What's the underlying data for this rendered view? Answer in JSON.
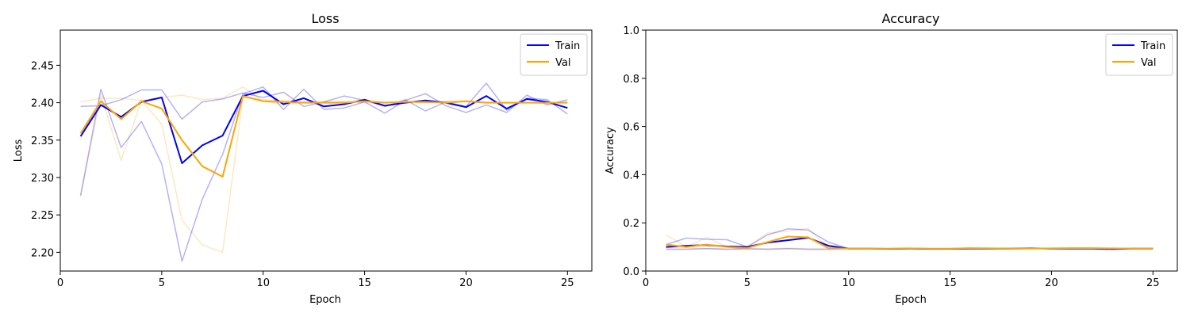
{
  "chart_data": [
    {
      "type": "line",
      "title": "Loss",
      "xlabel": "Epoch",
      "ylabel": "Loss",
      "xlim": [
        0,
        26.2
      ],
      "ylim": [
        2.175,
        2.497
      ],
      "xticks": [
        0,
        5,
        10,
        15,
        20,
        25
      ],
      "yticks": [
        2.2,
        2.25,
        2.3,
        2.35,
        2.4,
        2.45
      ],
      "ytick_labels": [
        "2.20",
        "2.25",
        "2.30",
        "2.35",
        "2.40",
        "2.45"
      ],
      "legend_position": "top-right",
      "grid": false,
      "x": [
        1,
        2,
        3,
        4,
        5,
        6,
        7,
        8,
        9,
        10,
        11,
        12,
        13,
        14,
        15,
        16,
        17,
        18,
        19,
        20,
        21,
        22,
        23,
        24,
        25
      ],
      "series": [
        {
          "name": "Train",
          "color": "#0000ff",
          "opacity": 1.0,
          "width": 2,
          "values": [
            2.355,
            2.397,
            2.381,
            2.401,
            2.407,
            2.319,
            2.343,
            2.356,
            2.409,
            2.416,
            2.398,
            2.406,
            2.395,
            2.398,
            2.404,
            2.396,
            2.4,
            2.403,
            2.4,
            2.394,
            2.409,
            2.392,
            2.405,
            2.401,
            2.393
          ]
        },
        {
          "name": "Val",
          "color": "#ffa500",
          "opacity": 1.0,
          "width": 2,
          "values": [
            2.359,
            2.402,
            2.378,
            2.402,
            2.392,
            2.35,
            2.315,
            2.301,
            2.409,
            2.402,
            2.401,
            2.4,
            2.4,
            2.4,
            2.402,
            2.4,
            2.401,
            2.401,
            2.4,
            2.402,
            2.4,
            2.4,
            2.4,
            2.4,
            2.4
          ]
        },
        {
          "color": "#0000ff",
          "opacity": 0.3,
          "width": 1.5,
          "values": [
            2.395,
            2.396,
            2.404,
            2.417,
            2.417,
            2.378,
            2.401,
            2.405,
            2.413,
            2.407,
            2.414,
            2.395,
            2.401,
            2.409,
            2.403,
            2.395,
            2.404,
            2.389,
            2.401,
            2.395,
            2.426,
            2.39,
            2.406,
            2.404,
            2.385
          ]
        },
        {
          "color": "#0000ff",
          "opacity": 0.3,
          "width": 1.5,
          "values": [
            2.276,
            2.418,
            2.34,
            2.375,
            2.318,
            2.188,
            2.271,
            2.331,
            2.412,
            2.421,
            2.391,
            2.418,
            2.391,
            2.393,
            2.401,
            2.386,
            2.403,
            2.412,
            2.396,
            2.387,
            2.397,
            2.387,
            2.41,
            2.397,
            2.404
          ]
        },
        {
          "color": "#ffa500",
          "opacity": 0.25,
          "width": 1.5,
          "values": [
            2.401,
            2.406,
            2.406,
            2.403,
            2.407,
            2.41,
            2.404,
            2.406,
            2.421,
            2.402,
            2.398,
            2.4,
            2.402,
            2.402,
            2.4,
            2.4,
            2.402,
            2.4,
            2.402,
            2.402,
            2.4,
            2.4,
            2.4,
            2.399,
            2.402
          ]
        },
        {
          "color": "#ffa500",
          "opacity": 0.25,
          "width": 1.5,
          "values": [
            2.275,
            2.41,
            2.323,
            2.403,
            2.371,
            2.243,
            2.21,
            2.2,
            2.407,
            2.404,
            2.403,
            2.402,
            2.4,
            2.4,
            2.402,
            2.401,
            2.4,
            2.4,
            2.401,
            2.402,
            2.401,
            2.4,
            2.4,
            2.4,
            2.4
          ]
        }
      ]
    },
    {
      "type": "line",
      "title": "Accuracy",
      "xlabel": "Epoch",
      "ylabel": "Accuracy",
      "xlim": [
        0,
        26.2
      ],
      "ylim": [
        0.0,
        1.0
      ],
      "xticks": [
        0,
        5,
        10,
        15,
        20,
        25
      ],
      "yticks": [
        0.0,
        0.2,
        0.4,
        0.6,
        0.8,
        1.0
      ],
      "ytick_labels": [
        "0.0",
        "0.2",
        "0.4",
        "0.6",
        "0.8",
        "1.0"
      ],
      "legend_position": "top-right",
      "grid": false,
      "x": [
        1,
        2,
        3,
        4,
        5,
        6,
        7,
        8,
        9,
        10,
        11,
        12,
        13,
        14,
        15,
        16,
        17,
        18,
        19,
        20,
        21,
        22,
        23,
        24,
        25
      ],
      "series": [
        {
          "name": "Train",
          "color": "#0000ff",
          "opacity": 1.0,
          "width": 2,
          "values": [
            0.1,
            0.105,
            0.108,
            0.102,
            0.1,
            0.118,
            0.128,
            0.138,
            0.105,
            0.093,
            0.093,
            0.092,
            0.093,
            0.092,
            0.092,
            0.093,
            0.093,
            0.093,
            0.094,
            0.093,
            0.093,
            0.093,
            0.091,
            0.093,
            0.093
          ]
        },
        {
          "name": "Val",
          "color": "#ffa500",
          "opacity": 1.0,
          "width": 2,
          "values": [
            0.11,
            0.1,
            0.11,
            0.1,
            0.095,
            0.12,
            0.143,
            0.14,
            0.095,
            0.093,
            0.093,
            0.093,
            0.094,
            0.093,
            0.093,
            0.095,
            0.094,
            0.093,
            0.093,
            0.094,
            0.095,
            0.095,
            0.094,
            0.093,
            0.093
          ]
        },
        {
          "color": "#0000ff",
          "opacity": 0.3,
          "width": 1.5,
          "values": [
            0.11,
            0.137,
            0.132,
            0.13,
            0.1,
            0.15,
            0.175,
            0.17,
            0.12,
            0.093,
            0.093,
            0.092,
            0.093,
            0.093,
            0.092,
            0.093,
            0.093,
            0.093,
            0.093,
            0.093,
            0.093,
            0.093,
            0.092,
            0.093,
            0.093
          ]
        },
        {
          "color": "#0000ff",
          "opacity": 0.3,
          "width": 1.5,
          "values": [
            0.09,
            0.09,
            0.093,
            0.09,
            0.093,
            0.09,
            0.093,
            0.09,
            0.09,
            0.093,
            0.093,
            0.092,
            0.093,
            0.092,
            0.092,
            0.093,
            0.093,
            0.093,
            0.093,
            0.093,
            0.093,
            0.093,
            0.091,
            0.093,
            0.093
          ]
        },
        {
          "color": "#ffa500",
          "opacity": 0.25,
          "width": 1.5,
          "values": [
            0.15,
            0.1,
            0.14,
            0.1,
            0.1,
            0.158,
            0.165,
            0.178,
            0.095,
            0.093,
            0.093,
            0.093,
            0.094,
            0.093,
            0.093,
            0.095,
            0.094,
            0.093,
            0.093,
            0.094,
            0.095,
            0.095,
            0.094,
            0.093,
            0.093
          ]
        },
        {
          "color": "#ffa500",
          "opacity": 0.25,
          "width": 1.5,
          "values": [
            0.095,
            0.095,
            0.093,
            0.093,
            0.09,
            0.093,
            0.095,
            0.093,
            0.095,
            0.093,
            0.093,
            0.093,
            0.094,
            0.093,
            0.093,
            0.095,
            0.094,
            0.093,
            0.093,
            0.094,
            0.095,
            0.095,
            0.094,
            0.093,
            0.093
          ]
        }
      ]
    }
  ]
}
